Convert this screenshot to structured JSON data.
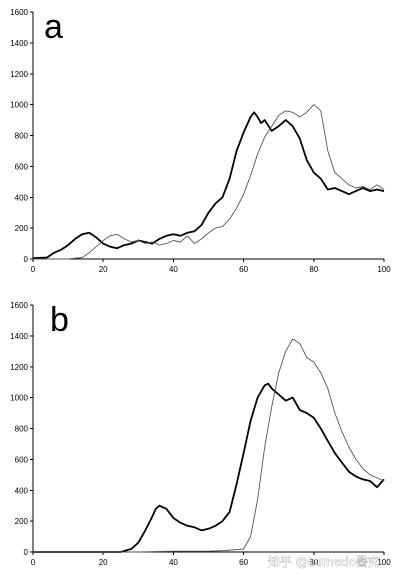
{
  "chart_data": [
    {
      "type": "line",
      "panel_label": "a",
      "xlim": [
        0,
        100
      ],
      "ylim": [
        0,
        1600
      ],
      "xticks": [
        0,
        20,
        40,
        60,
        80,
        100
      ],
      "yticks": [
        0,
        200,
        400,
        600,
        800,
        1000,
        1200,
        1400,
        1600
      ],
      "grid": false,
      "series": [
        {
          "color": "#000000",
          "weight": "thick",
          "x": [
            0,
            4,
            6,
            8,
            10,
            12,
            14,
            16,
            18,
            20,
            22,
            24,
            26,
            28,
            30,
            32,
            34,
            36,
            38,
            40,
            42,
            44,
            46,
            48,
            50,
            52,
            54,
            56,
            58,
            60,
            62,
            63,
            64,
            65,
            66,
            68,
            70,
            72,
            74,
            76,
            78,
            80,
            82,
            84,
            86,
            88,
            90,
            92,
            94,
            96,
            98,
            100
          ],
          "values": [
            5,
            10,
            40,
            60,
            90,
            130,
            160,
            170,
            140,
            100,
            80,
            70,
            90,
            100,
            120,
            110,
            100,
            130,
            150,
            160,
            150,
            170,
            180,
            220,
            300,
            360,
            400,
            520,
            700,
            820,
            920,
            950,
            920,
            880,
            900,
            830,
            860,
            900,
            860,
            780,
            640,
            560,
            520,
            450,
            460,
            440,
            420,
            440,
            460,
            440,
            450,
            440
          ]
        },
        {
          "color": "#555555",
          "weight": "thin",
          "x": [
            0,
            10,
            14,
            16,
            18,
            20,
            22,
            24,
            26,
            28,
            30,
            32,
            34,
            36,
            38,
            40,
            42,
            44,
            46,
            48,
            50,
            52,
            54,
            56,
            58,
            60,
            62,
            64,
            66,
            68,
            70,
            72,
            74,
            76,
            78,
            80,
            82,
            84,
            86,
            88,
            90,
            92,
            94,
            96,
            98,
            100
          ],
          "values": [
            0,
            0,
            10,
            40,
            80,
            120,
            150,
            160,
            130,
            110,
            120,
            100,
            110,
            90,
            100,
            120,
            110,
            150,
            100,
            130,
            170,
            200,
            210,
            260,
            330,
            420,
            540,
            680,
            790,
            860,
            930,
            960,
            950,
            920,
            950,
            1000,
            960,
            700,
            560,
            520,
            480,
            460,
            470,
            450,
            480,
            450
          ]
        }
      ]
    },
    {
      "type": "line",
      "panel_label": "b",
      "xlim": [
        0,
        100
      ],
      "ylim": [
        0,
        1600
      ],
      "xticks": [
        0,
        20,
        40,
        60,
        80,
        100
      ],
      "yticks": [
        0,
        200,
        400,
        600,
        800,
        1000,
        1200,
        1400,
        1600
      ],
      "grid": false,
      "series": [
        {
          "color": "#000000",
          "weight": "thick",
          "x": [
            0,
            25,
            28,
            30,
            32,
            34,
            35,
            36,
            38,
            40,
            42,
            44,
            46,
            48,
            50,
            52,
            54,
            56,
            58,
            60,
            62,
            64,
            66,
            67,
            68,
            70,
            72,
            74,
            76,
            78,
            80,
            82,
            84,
            86,
            88,
            90,
            92,
            94,
            96,
            98,
            100
          ],
          "values": [
            0,
            0,
            20,
            60,
            140,
            230,
            280,
            300,
            280,
            220,
            190,
            170,
            160,
            140,
            150,
            170,
            200,
            260,
            440,
            640,
            850,
            1000,
            1080,
            1090,
            1060,
            1020,
            980,
            1000,
            920,
            900,
            870,
            800,
            720,
            640,
            580,
            520,
            490,
            470,
            460,
            420,
            470
          ]
        },
        {
          "color": "#555555",
          "weight": "thin",
          "x": [
            0,
            30,
            40,
            50,
            55,
            60,
            62,
            64,
            66,
            68,
            70,
            72,
            74,
            76,
            78,
            80,
            82,
            84,
            86,
            88,
            90,
            92,
            94,
            96,
            98,
            100
          ],
          "values": [
            0,
            0,
            5,
            5,
            10,
            20,
            100,
            340,
            680,
            940,
            1160,
            1300,
            1380,
            1350,
            1260,
            1230,
            1160,
            1060,
            900,
            780,
            680,
            600,
            540,
            500,
            480,
            460
          ]
        }
      ]
    }
  ],
  "watermark": "知乎 @Lumedo醫究"
}
